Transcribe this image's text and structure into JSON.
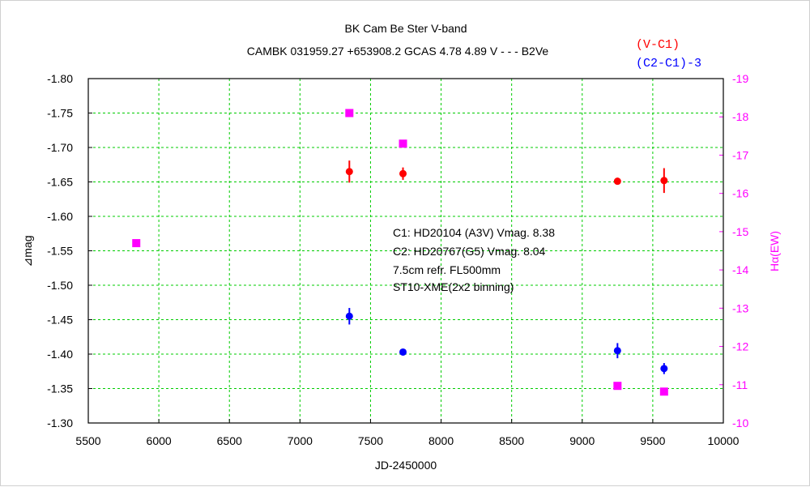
{
  "chart_data": {
    "type": "scatter",
    "title": "BK Cam    Be Ster    V-band",
    "subtitle": "CAMBK 031959.27 +653908.2 GCAS 4.78 4.89 V - - - B2Ve",
    "xlabel": "JD-2450000",
    "ylabel": "⊿mag",
    "ylabel_right": "Hα(EW)",
    "xlim": [
      5500,
      10000
    ],
    "ylim": [
      -1.8,
      -1.3
    ],
    "y_inverted": true,
    "ylim_right": [
      -19,
      -10
    ],
    "x_ticks": [
      5500,
      6000,
      6500,
      7000,
      7500,
      8000,
      8500,
      9000,
      9500,
      10000
    ],
    "y_ticks": [
      "-1.80",
      "-1.75",
      "-1.70",
      "-1.65",
      "-1.60",
      "-1.55",
      "-1.50",
      "-1.45",
      "-1.40",
      "-1.35",
      "-1.30"
    ],
    "y_tick_values": [
      -1.8,
      -1.75,
      -1.7,
      -1.65,
      -1.6,
      -1.55,
      -1.5,
      -1.45,
      -1.4,
      -1.35,
      -1.3
    ],
    "y_right_ticks": [
      "-19",
      "-18",
      "-17",
      "-16",
      "-15",
      "-14",
      "-13",
      "-12",
      "-11",
      "-10"
    ],
    "y_right_tick_values": [
      -19,
      -18,
      -17,
      -16,
      -15,
      -14,
      -13,
      -12,
      -11,
      -10
    ],
    "grid": true,
    "legend_placement": "top-right",
    "series": [
      {
        "name": "(V-C1)",
        "color": "#ff0000",
        "marker": "circle",
        "axis": "left",
        "points": [
          {
            "x": 7350,
            "y": -1.665,
            "err": 0.016
          },
          {
            "x": 7730,
            "y": -1.662,
            "err": 0.009
          },
          {
            "x": 9250,
            "y": -1.651,
            "err": 0.005
          },
          {
            "x": 9580,
            "y": -1.652,
            "err": 0.018
          }
        ]
      },
      {
        "name": "(C2-C1)-3",
        "color": "#0000ff",
        "marker": "circle",
        "axis": "left",
        "points": [
          {
            "x": 7350,
            "y": -1.455,
            "err": 0.012
          },
          {
            "x": 7730,
            "y": -1.403,
            "err": 0.004
          },
          {
            "x": 9250,
            "y": -1.405,
            "err": 0.011
          },
          {
            "x": 9580,
            "y": -1.379,
            "err": 0.008
          }
        ]
      },
      {
        "color": "#ff00ff",
        "marker": "square",
        "axis": "right",
        "points": [
          {
            "x": 5840,
            "y": -14.7
          },
          {
            "x": 7350,
            "y": -18.1
          },
          {
            "x": 7730,
            "y": -17.3
          },
          {
            "x": 9250,
            "y": -10.97
          },
          {
            "x": 9580,
            "y": -10.82
          }
        ]
      }
    ],
    "annotations": [
      "C1: HD20104 (A3V) Vmag. 8.38",
      "C2: HD20767(G5) Vmag. 8.04",
      "7.5cm refr. FL500mm",
      "ST10-XME(2x2 binning)"
    ]
  }
}
